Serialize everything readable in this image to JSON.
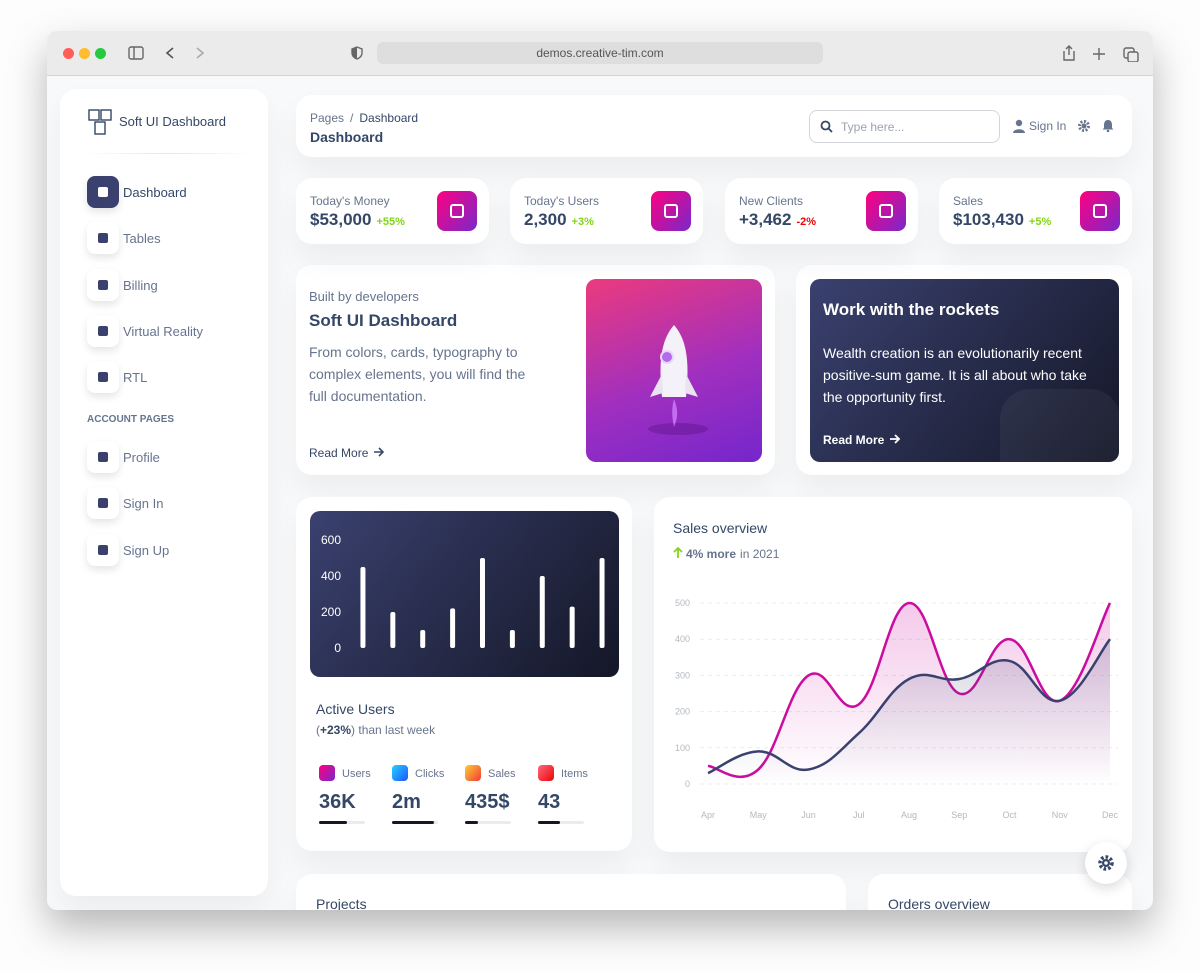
{
  "browser": {
    "url": "demos.creative-tim.com"
  },
  "sidebar": {
    "brand": "Soft UI Dashboard",
    "items": [
      "Dashboard",
      "Tables",
      "Billing",
      "Virtual Reality",
      "RTL"
    ],
    "section": "ACCOUNT PAGES",
    "account_items": [
      "Profile",
      "Sign In",
      "Sign Up"
    ]
  },
  "navbar": {
    "breadcrumb": [
      "Pages",
      "/",
      "Dashboard"
    ],
    "title": "Dashboard",
    "search_placeholder": "Type here...",
    "sign_in": "Sign In"
  },
  "stats": [
    {
      "label": "Today's Money",
      "value": "$53,000",
      "change": "+55%"
    },
    {
      "label": "Today's Users",
      "value": "2,300",
      "change": "+3%"
    },
    {
      "label": "New Clients",
      "value": "+3,462",
      "change": "-2%"
    },
    {
      "label": "Sales",
      "value": "$103,430",
      "change": "+5%"
    }
  ],
  "intro_card": {
    "eyebrow": "Built by developers",
    "title": "Soft UI Dashboard",
    "text": "From colors, cards, typography to complex elements, you will find the full documentation.",
    "link": "Read More"
  },
  "rockets_card": {
    "title": "Work with the rockets",
    "text": "Wealth creation is an evolutionarily recent positive-sum game. It is all about who take the opportunity first.",
    "link": "Read More"
  },
  "active_users": {
    "chart": {
      "type": "bar",
      "values": [
        450,
        200,
        100,
        220,
        500,
        100,
        400,
        230,
        500
      ],
      "color": "#ffffff",
      "ylim": [
        0,
        600
      ],
      "yticks": [
        0,
        200,
        400,
        600
      ]
    },
    "title": "Active Users",
    "subtitle": [
      "(",
      "+23%",
      ") than last week"
    ],
    "metrics": [
      {
        "label": "Users",
        "value": "36K"
      },
      {
        "label": "Clicks",
        "value": "2m"
      },
      {
        "label": "Sales",
        "value": "435$"
      },
      {
        "label": "Items",
        "value": "43"
      }
    ]
  },
  "sales_overview": {
    "title": "Sales overview",
    "subtitle": [
      "4% more",
      "in 2021"
    ],
    "chart": {
      "type": "line",
      "categories": [
        "Apr",
        "May",
        "Jun",
        "Jul",
        "Aug",
        "Sep",
        "Oct",
        "Nov",
        "Dec"
      ],
      "series": [
        {
          "color": "#cb0c9f",
          "values": [
            50,
            40,
            300,
            220,
            500,
            250,
            400,
            230,
            500
          ]
        },
        {
          "color": "#3a416f",
          "values": [
            30,
            90,
            40,
            140,
            290,
            290,
            340,
            230,
            400
          ]
        }
      ],
      "ylim": [
        0,
        500
      ],
      "yticks": [
        0,
        100,
        200,
        300,
        400,
        500
      ],
      "grid": true
    }
  },
  "projects": {
    "title": "Projects"
  },
  "orders": {
    "title": "Orders overview"
  }
}
